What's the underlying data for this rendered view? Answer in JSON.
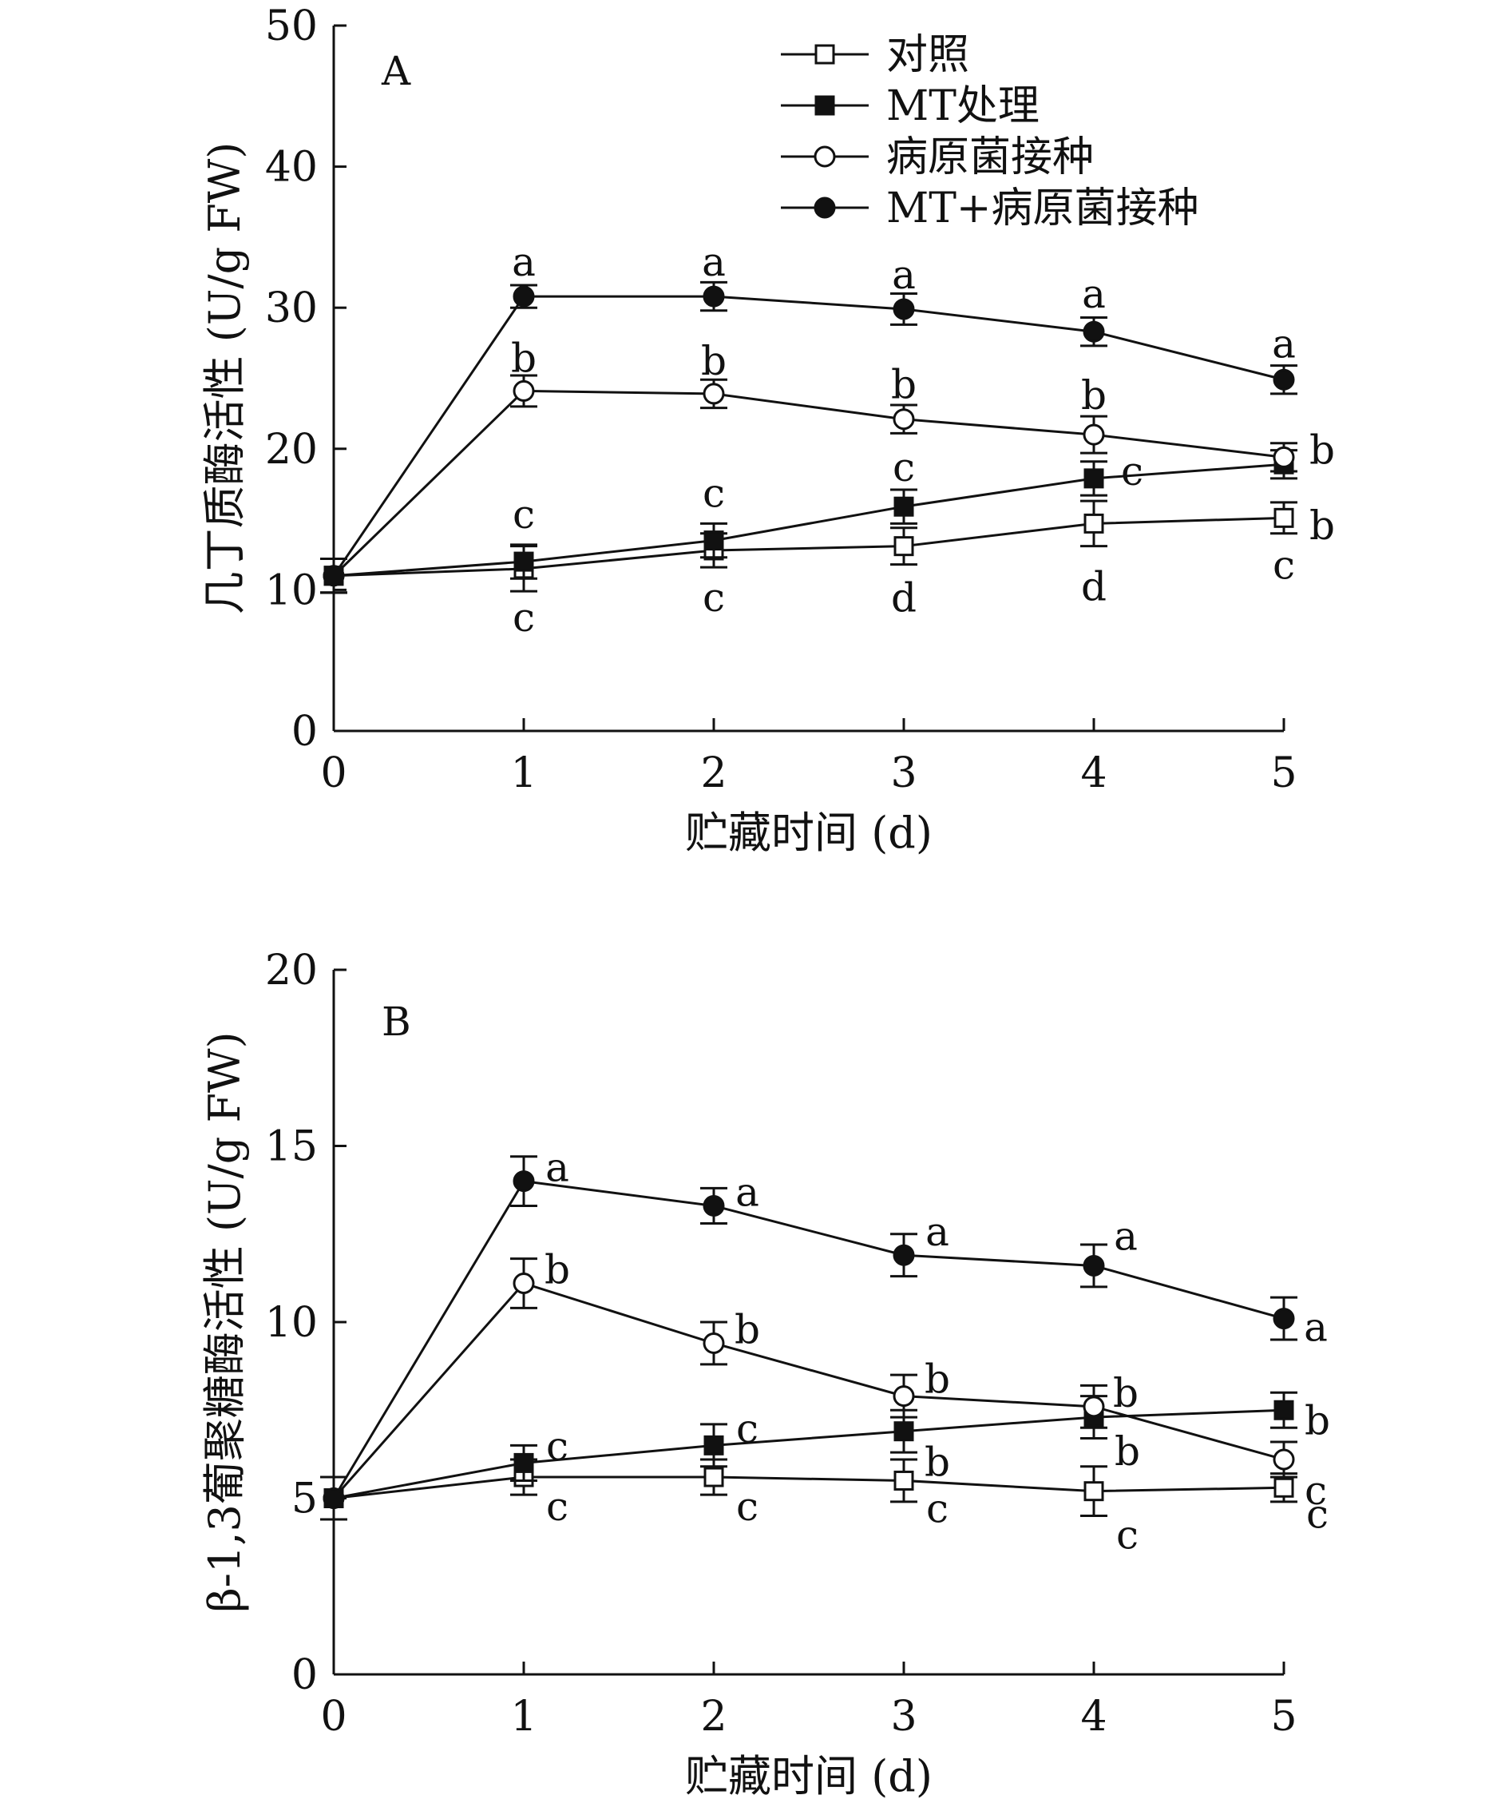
{
  "legend": [
    "对照",
    "MT处理",
    "病原菌接种",
    "MT+病原菌接种"
  ],
  "chart_data": [
    {
      "type": "line",
      "panel": "A",
      "ylabel": "几丁质酶活性 (U/g FW)",
      "xlabel": "贮藏时间 (d)",
      "x": [
        0,
        1,
        2,
        3,
        4,
        5
      ],
      "ylim": [
        0,
        50
      ],
      "yticks": [
        0,
        10,
        20,
        30,
        40,
        50
      ],
      "xticks": [
        0,
        1,
        2,
        3,
        4,
        5
      ],
      "legend_position": "top-right",
      "series": [
        {
          "name": "对照",
          "marker": "open-square",
          "values": [
            11.0,
            11.5,
            12.8,
            13.1,
            14.7,
            15.1
          ],
          "err": [
            1.2,
            1.6,
            1.2,
            1.3,
            1.6,
            1.1
          ],
          "letters": [
            "",
            "c",
            "c",
            "d",
            "d",
            "c"
          ]
        },
        {
          "name": "MT处理",
          "marker": "filled-square",
          "values": [
            11.0,
            12.0,
            13.5,
            15.9,
            17.9,
            18.9
          ],
          "err": [
            1.2,
            1.2,
            1.2,
            1.2,
            1.2,
            1.0
          ],
          "letters": [
            "",
            "c",
            "c",
            "c",
            "c",
            "b"
          ]
        },
        {
          "name": "病原菌接种",
          "marker": "open-circle",
          "values": [
            11.0,
            24.1,
            23.9,
            22.1,
            21.0,
            19.4
          ],
          "err": [
            1.2,
            1.1,
            1.0,
            1.0,
            1.3,
            1.0
          ],
          "letters": [
            "",
            "b",
            "b",
            "b",
            "b",
            "b"
          ]
        },
        {
          "name": "MT+病原菌接种",
          "marker": "filled-circle",
          "values": [
            11.0,
            30.8,
            30.8,
            29.9,
            28.3,
            24.9
          ],
          "err": [
            1.2,
            0.8,
            1.0,
            1.1,
            1.0,
            1.0
          ],
          "letters": [
            "",
            "a",
            "a",
            "a",
            "a",
            "a"
          ]
        }
      ]
    },
    {
      "type": "line",
      "panel": "B",
      "ylabel": "β-1,3葡聚糖酶活性 (U/g FW)",
      "xlabel": "贮藏时间 (d)",
      "x": [
        0,
        1,
        2,
        3,
        4,
        5
      ],
      "ylim": [
        0,
        20
      ],
      "yticks": [
        0,
        5,
        10,
        15,
        20
      ],
      "xticks": [
        0,
        1,
        2,
        3,
        4,
        5
      ],
      "series": [
        {
          "name": "对照",
          "marker": "open-square",
          "values": [
            5.0,
            5.6,
            5.6,
            5.5,
            5.2,
            5.3
          ],
          "err": [
            0.6,
            0.5,
            0.5,
            0.6,
            0.7,
            0.4
          ],
          "letters": [
            "",
            "c",
            "c",
            "c",
            "c",
            "c"
          ]
        },
        {
          "name": "MT处理",
          "marker": "filled-square",
          "values": [
            5.0,
            6.0,
            6.5,
            6.9,
            7.3,
            7.5
          ],
          "err": [
            0.6,
            0.5,
            0.6,
            0.6,
            0.6,
            0.5
          ],
          "letters": [
            "",
            "c",
            "c",
            "b",
            "b",
            "b"
          ]
        },
        {
          "name": "病原菌接种",
          "marker": "open-circle",
          "values": [
            5.0,
            11.1,
            9.4,
            7.9,
            7.6,
            6.1
          ],
          "err": [
            0.6,
            0.7,
            0.6,
            0.6,
            0.6,
            0.5
          ],
          "letters": [
            "",
            "b",
            "b",
            "b",
            "b",
            "c"
          ]
        },
        {
          "name": "MT+病原菌接种",
          "marker": "filled-circle",
          "values": [
            5.0,
            14.0,
            13.3,
            11.9,
            11.6,
            10.1
          ],
          "err": [
            0.6,
            0.7,
            0.5,
            0.6,
            0.6,
            0.6
          ],
          "letters": [
            "",
            "a",
            "a",
            "a",
            "a",
            "a"
          ]
        }
      ]
    }
  ]
}
